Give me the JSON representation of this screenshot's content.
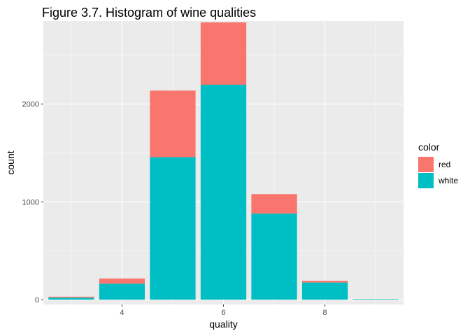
{
  "chart_data": {
    "type": "bar",
    "stacked": true,
    "title": "Figure 3.7. Histogram of wine qualities",
    "xlabel": "quality",
    "ylabel": "count",
    "x": [
      3,
      4,
      5,
      6,
      7,
      8,
      9
    ],
    "series": [
      {
        "name": "red",
        "values": [
          10,
          53,
          681,
          638,
          199,
          18,
          0
        ]
      },
      {
        "name": "white",
        "values": [
          20,
          163,
          1457,
          2198,
          880,
          175,
          5
        ]
      }
    ],
    "colors": {
      "red": "#F8766D",
      "white": "#00BFC4"
    },
    "xlim": [
      2.45,
      9.55
    ],
    "ylim": [
      -50,
      2850
    ],
    "x_ticks": [
      4,
      6,
      8
    ],
    "y_ticks": [
      0,
      1000,
      2000
    ],
    "x_tick_labels": [
      "4",
      "6",
      "8"
    ],
    "y_tick_labels": [
      "0",
      "1000",
      "2000"
    ],
    "bar_width": 0.9,
    "grid": true,
    "panel_background": "#EBEBEB",
    "legend": {
      "title": "color",
      "position": "right",
      "entries": [
        "red",
        "white"
      ]
    }
  }
}
